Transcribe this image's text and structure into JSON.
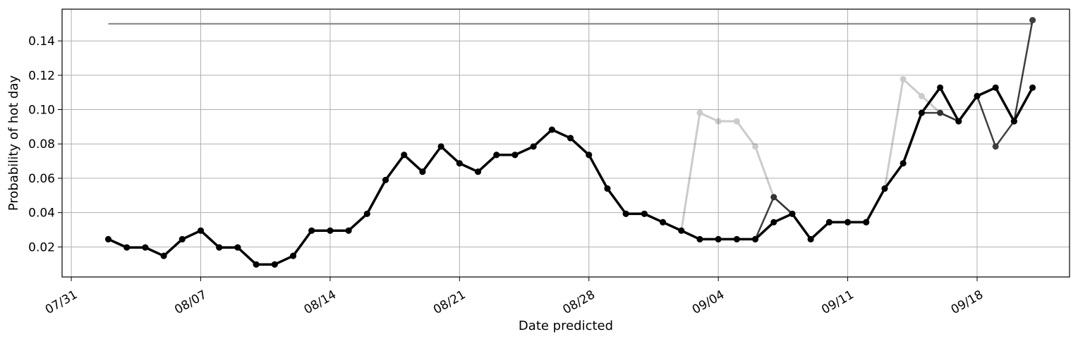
{
  "chart_data": {
    "type": "line",
    "title": "",
    "xlabel": "Date predicted",
    "ylabel": "Probability of hot day",
    "x_tick_labels": [
      "07/31",
      "08/07",
      "08/14",
      "08/21",
      "08/28",
      "09/04",
      "09/11",
      "09/18"
    ],
    "y_tick_labels": [
      "0.02",
      "0.04",
      "0.06",
      "0.08",
      "0.10",
      "0.12",
      "0.14"
    ],
    "y_ticks": [
      0.02,
      0.04,
      0.06,
      0.08,
      0.1,
      0.12,
      0.14
    ],
    "xlim": [
      "07/30 12:00",
      "09/23"
    ],
    "ylim": [
      0.0025,
      0.1585
    ],
    "grid": true,
    "x": [
      "08/02",
      "08/03",
      "08/04",
      "08/05",
      "08/06",
      "08/07",
      "08/08",
      "08/09",
      "08/10",
      "08/11",
      "08/12",
      "08/13",
      "08/14",
      "08/15",
      "08/16",
      "08/17",
      "08/18",
      "08/19",
      "08/20",
      "08/21",
      "08/22",
      "08/23",
      "08/24",
      "08/25",
      "08/26",
      "08/27",
      "08/28",
      "08/29",
      "08/30",
      "08/31",
      "09/01",
      "09/02",
      "09/03",
      "09/04",
      "09/05",
      "09/06",
      "09/07",
      "09/08",
      "09/09",
      "09/10",
      "09/11",
      "09/12",
      "09/13",
      "09/14",
      "09/15",
      "09/16",
      "09/17",
      "09/18",
      "09/19",
      "09/20",
      "09/21"
    ],
    "series": [
      {
        "color": "#000000",
        "opacity": 0.2,
        "line_width": 3,
        "values": [
          0.0245,
          0.0197,
          0.0197,
          0.0148,
          0.0245,
          0.0295,
          0.0197,
          0.0197,
          0.0098,
          0.0098,
          0.0148,
          0.0295,
          0.0295,
          0.0295,
          0.0393,
          0.059,
          0.0736,
          0.0638,
          0.0785,
          0.0687,
          0.0638,
          0.0736,
          0.0736,
          0.0785,
          0.0883,
          0.0834,
          0.0736,
          0.054,
          0.0393,
          0.0393,
          0.0344,
          0.0295,
          0.0981,
          0.0932,
          0.0932,
          0.0785,
          0.049,
          0.0393,
          0.0245,
          0.0344,
          0.0344,
          0.0344,
          0.054,
          0.1177,
          0.1079,
          0.0981,
          0.0932,
          0.1079,
          0.1128,
          0.0932,
          0.1128
        ]
      },
      {
        "color": "#000000",
        "opacity": 0.75,
        "line_width": 2.5,
        "values": [
          0.0245,
          0.0197,
          0.0197,
          0.0148,
          0.0245,
          0.0295,
          0.0197,
          0.0197,
          0.0098,
          0.0098,
          0.0148,
          0.0295,
          0.0295,
          0.0295,
          0.0393,
          0.059,
          0.0736,
          0.0638,
          0.0785,
          0.0687,
          0.0638,
          0.0736,
          0.0736,
          0.0785,
          0.0883,
          0.0834,
          0.0736,
          0.054,
          0.0393,
          0.0393,
          0.0344,
          0.0295,
          0.0245,
          0.0245,
          0.0245,
          0.0245,
          0.049,
          0.0393,
          0.0245,
          0.0344,
          0.0344,
          0.0344,
          0.054,
          0.0687,
          0.0981,
          0.0981,
          0.0932,
          0.1079,
          0.0785,
          0.0932,
          0.1521
        ]
      },
      {
        "color": "#000000",
        "opacity": 1,
        "line_width": 3.5,
        "values": [
          0.0245,
          0.0197,
          0.0197,
          0.0148,
          0.0245,
          0.0295,
          0.0197,
          0.0197,
          0.0098,
          0.0098,
          0.0148,
          0.0295,
          0.0295,
          0.0295,
          0.0393,
          0.059,
          0.0736,
          0.0638,
          0.0785,
          0.0687,
          0.0638,
          0.0736,
          0.0736,
          0.0785,
          0.0883,
          0.0834,
          0.0736,
          0.054,
          0.0393,
          0.0393,
          0.0344,
          0.0295,
          0.0245,
          0.0245,
          0.0245,
          0.0245,
          0.0344,
          0.0393,
          0.0245,
          0.0344,
          0.0344,
          0.0344,
          0.054,
          0.0687,
          0.0981,
          0.1128,
          0.0932,
          0.1079,
          0.1128,
          0.0932,
          0.1128
        ]
      }
    ],
    "reference_line": {
      "y": 0.15,
      "x_start": "08/02",
      "x_end": "09/21",
      "color": "#808080"
    }
  }
}
